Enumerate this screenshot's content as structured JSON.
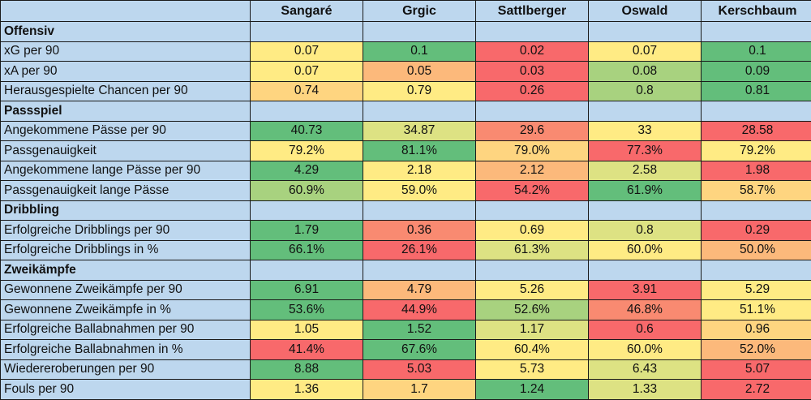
{
  "players": [
    "Sangaré",
    "Grgic",
    "Sattlberger",
    "Oswald",
    "Kerschbaum"
  ],
  "colors": {
    "G": "#63be7b",
    "LG": "#a8d27f",
    "YG": "#dde283",
    "Y": "#ffeb84",
    "LO": "#fed580",
    "O": "#fcb97b",
    "OR": "#f98a71",
    "R": "#f8696b"
  },
  "rows": [
    {
      "category": "Offensiv"
    },
    {
      "label": "xG per 90",
      "values": [
        "0.07",
        "0.1",
        "0.02",
        "0.07",
        "0.1"
      ],
      "heat": [
        "Y",
        "G",
        "R",
        "Y",
        "G"
      ]
    },
    {
      "label": "xA per 90",
      "values": [
        "0.07",
        "0.05",
        "0.03",
        "0.08",
        "0.09"
      ],
      "heat": [
        "Y",
        "O",
        "R",
        "LG",
        "G"
      ]
    },
    {
      "label": "Herausgespielte Chancen per 90",
      "values": [
        "0.74",
        "0.79",
        "0.26",
        "0.8",
        "0.81"
      ],
      "heat": [
        "LO",
        "Y",
        "R",
        "LG",
        "G"
      ]
    },
    {
      "category": "Passspiel"
    },
    {
      "label": "Angekommene Pässe per 90",
      "values": [
        "40.73",
        "34.87",
        "29.6",
        "33",
        "28.58"
      ],
      "heat": [
        "G",
        "YG",
        "OR",
        "Y",
        "R"
      ]
    },
    {
      "label": "Passgenauigkeit",
      "values": [
        "79.2%",
        "81.1%",
        "79.0%",
        "77.3%",
        "79.2%"
      ],
      "heat": [
        "Y",
        "G",
        "LO",
        "R",
        "Y"
      ]
    },
    {
      "label": "Angekommene lange Pässe per 90",
      "values": [
        "4.29",
        "2.18",
        "2.12",
        "2.58",
        "1.98"
      ],
      "heat": [
        "G",
        "Y",
        "O",
        "YG",
        "R"
      ]
    },
    {
      "label": "Passgenauigkeit lange Pässe",
      "values": [
        "60.9%",
        "59.0%",
        "54.2%",
        "61.9%",
        "58.7%"
      ],
      "heat": [
        "LG",
        "Y",
        "R",
        "G",
        "LO"
      ]
    },
    {
      "category": "Dribbling"
    },
    {
      "label": "Erfolgreiche Dribblings per 90",
      "values": [
        "1.79",
        "0.36",
        "0.69",
        "0.8",
        "0.29"
      ],
      "heat": [
        "G",
        "OR",
        "Y",
        "YG",
        "R"
      ]
    },
    {
      "label": "Erfolgreiche Dribblings in %",
      "values": [
        "66.1%",
        "26.1%",
        "61.3%",
        "60.0%",
        "50.0%"
      ],
      "heat": [
        "G",
        "R",
        "YG",
        "Y",
        "O"
      ]
    },
    {
      "category": "Zweikämpfe"
    },
    {
      "label": "Gewonnene Zweikämpfe per 90",
      "values": [
        "6.91",
        "4.79",
        "5.26",
        "3.91",
        "5.29"
      ],
      "heat": [
        "G",
        "O",
        "Y",
        "R",
        "Y"
      ]
    },
    {
      "label": "Gewonnene Zweikämpfe in %",
      "values": [
        "53.6%",
        "44.9%",
        "52.6%",
        "46.8%",
        "51.1%"
      ],
      "heat": [
        "G",
        "R",
        "LG",
        "OR",
        "Y"
      ]
    },
    {
      "label": "Erfolgreiche Ballabnahmen per 90",
      "values": [
        "1.05",
        "1.52",
        "1.17",
        "0.6",
        "0.96"
      ],
      "heat": [
        "Y",
        "G",
        "YG",
        "R",
        "LO"
      ]
    },
    {
      "label": "Erfolgreiche Ballabnahmen in %",
      "values": [
        "41.4%",
        "67.6%",
        "60.4%",
        "60.0%",
        "52.0%"
      ],
      "heat": [
        "R",
        "G",
        "Y",
        "Y",
        "O"
      ]
    },
    {
      "label": "Wiedereroberungen per 90",
      "values": [
        "8.88",
        "5.03",
        "5.73",
        "6.43",
        "5.07"
      ],
      "heat": [
        "G",
        "R",
        "Y",
        "YG",
        "R"
      ]
    },
    {
      "label": "Fouls per 90",
      "values": [
        "1.36",
        "1.7",
        "1.24",
        "1.33",
        "2.72"
      ],
      "heat": [
        "Y",
        "LO",
        "G",
        "YG",
        "R"
      ]
    }
  ]
}
